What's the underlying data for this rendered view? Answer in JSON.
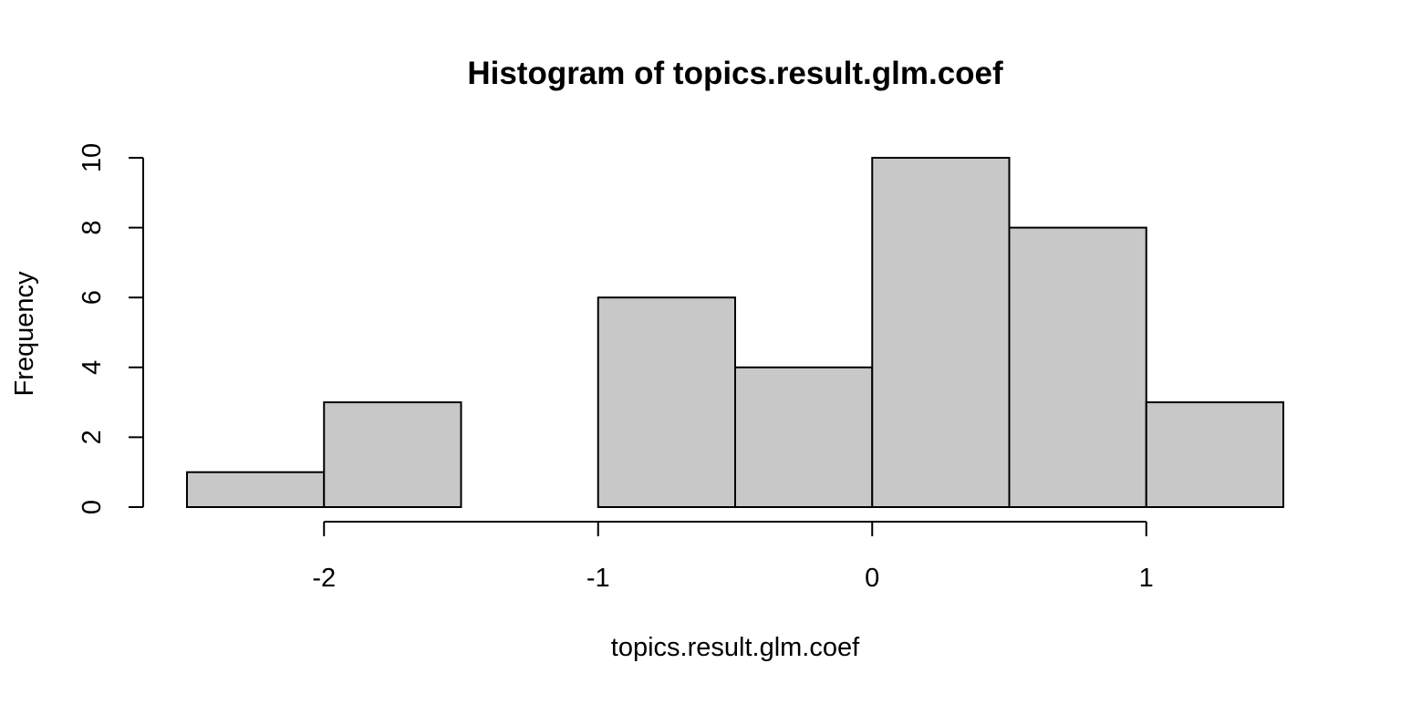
{
  "chart_data": {
    "type": "bar",
    "title": "Histogram of topics.result.glm.coef",
    "xlabel": "topics.result.glm.coef",
    "ylabel": "Frequency",
    "bins": [
      {
        "x0": -2.5,
        "x1": -2.0,
        "count": 1
      },
      {
        "x0": -2.0,
        "x1": -1.5,
        "count": 3
      },
      {
        "x0": -1.5,
        "x1": -1.0,
        "count": 0
      },
      {
        "x0": -1.0,
        "x1": -0.5,
        "count": 6
      },
      {
        "x0": -0.5,
        "x1": 0.0,
        "count": 4
      },
      {
        "x0": 0.0,
        "x1": 0.5,
        "count": 10
      },
      {
        "x0": 0.5,
        "x1": 1.0,
        "count": 8
      },
      {
        "x0": 1.0,
        "x1": 1.5,
        "count": 3
      }
    ],
    "xlim": [
      -2.5,
      1.5
    ],
    "ylim": [
      0,
      10
    ],
    "x_ticks": [
      -2,
      -1,
      0,
      1
    ],
    "x_tick_labels": [
      "-2",
      "-1",
      "0",
      "1"
    ],
    "y_ticks": [
      0,
      2,
      4,
      6,
      8,
      10
    ],
    "y_tick_labels": [
      "0",
      "2",
      "4",
      "6",
      "8",
      "10"
    ],
    "grid": false,
    "bar_fill": "#c8c8c8",
    "bar_stroke": "#000000"
  }
}
